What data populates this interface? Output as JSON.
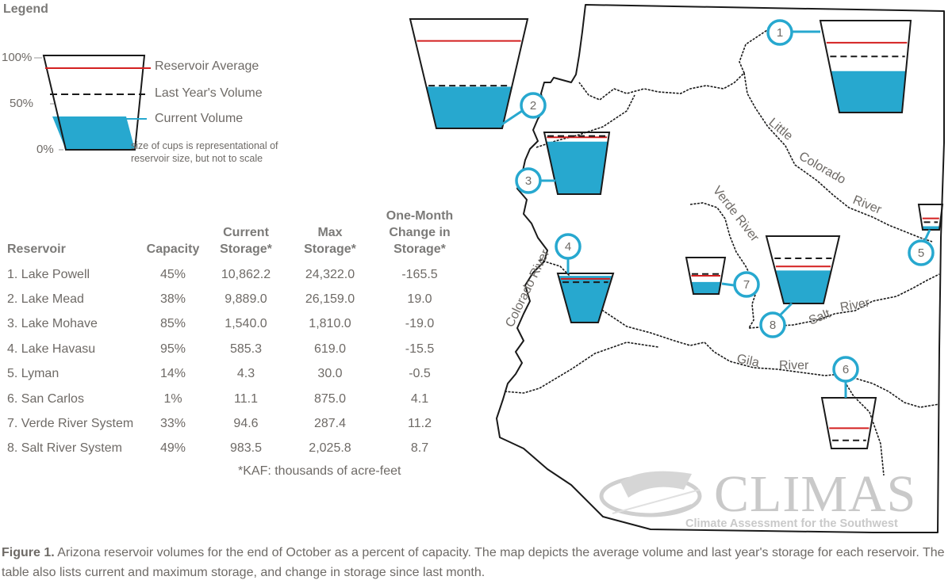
{
  "legend": {
    "title": "Legend",
    "pct_100": "100%",
    "pct_50": "50%",
    "pct_0": "0%",
    "reservoir_average": "Reservoir Average",
    "last_year": "Last Year's Volume",
    "current": "Current Volume",
    "note": "size of cups is representational of reservoir size, but not to scale"
  },
  "colors": {
    "water": "#27a8cf",
    "average_line": "#d42020",
    "callout": "#27a8cf",
    "outline": "#1a1a1a"
  },
  "table": {
    "headers": {
      "reservoir": "Reservoir",
      "capacity": "Capacity",
      "current_1": "Current",
      "current_2": "Storage*",
      "max_1": "Max",
      "max_2": "Storage*",
      "change_1": "One-Month",
      "change_2": "Change in",
      "change_3": "Storage*"
    },
    "rows": [
      {
        "name": "1. Lake Powell",
        "capacity": "45%",
        "current": "10,862.2",
        "max": "24,322.0",
        "change": "-165.5"
      },
      {
        "name": "2. Lake Mead",
        "capacity": "38%",
        "current": "9,889.0",
        "max": "26,159.0",
        "change": "19.0"
      },
      {
        "name": "3. Lake Mohave",
        "capacity": "85%",
        "current": "1,540.0",
        "max": "1,810.0",
        "change": "-19.0"
      },
      {
        "name": "4. Lake Havasu",
        "capacity": "95%",
        "current": "585.3",
        "max": "619.0",
        "change": "-15.5"
      },
      {
        "name": "5. Lyman",
        "capacity": "14%",
        "current": "4.3",
        "max": "30.0",
        "change": "-0.5"
      },
      {
        "name": "6. San Carlos",
        "capacity": "1%",
        "current": "11.1",
        "max": "875.0",
        "change": "4.1"
      },
      {
        "name": "7. Verde River System",
        "capacity": "33%",
        "current": "94.6",
        "max": "287.4",
        "change": "11.2"
      },
      {
        "name": "8. Salt River System",
        "capacity": "49%",
        "current": "983.5",
        "max": "2,025.8",
        "change": "8.7"
      }
    ],
    "footnote": "*KAF: thousands of acre-feet"
  },
  "map": {
    "rivers": {
      "little": "Little",
      "colorado": "Colorado",
      "river": "River",
      "verde": "Verde River",
      "colorado_west": "Colorado River",
      "salt": "Salt",
      "salt_river": "River",
      "gila": "Gila",
      "gila_river": "River"
    },
    "reservoirs": [
      {
        "number": "1",
        "current": 0.45,
        "average": 0.76,
        "last_year": 0.61
      },
      {
        "number": "2",
        "current": 0.38,
        "average": 0.8,
        "last_year": 0.39
      },
      {
        "number": "3",
        "current": 0.85,
        "average": 0.92,
        "last_year": 0.94
      },
      {
        "number": "4",
        "current": 0.95,
        "average": 0.89,
        "last_year": 0.82
      },
      {
        "number": "5",
        "current": 0.14,
        "average": 0.45,
        "last_year": 0.3
      },
      {
        "number": "6",
        "current": 0.01,
        "average": 0.4,
        "last_year": 0.16
      },
      {
        "number": "7",
        "current": 0.33,
        "average": 0.5,
        "last_year": 0.55
      },
      {
        "number": "8",
        "current": 0.49,
        "average": 0.55,
        "last_year": 0.67
      }
    ]
  },
  "logo": {
    "name": "CLIMAS",
    "subtitle": "Climate Assessment for the Southwest"
  },
  "caption": {
    "label": "Figure 1.",
    "text": " Arizona reservoir volumes for the end of October as a percent of capacity. The map depicts the average volume and last year's storage for each reservoir. The table also lists current and maximum storage, and change in storage since last month."
  }
}
